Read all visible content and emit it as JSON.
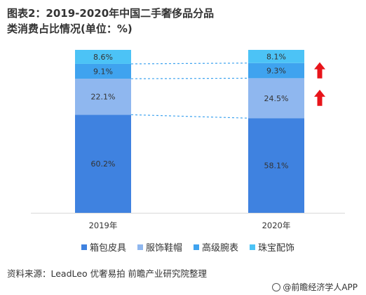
{
  "chart_data": {
    "type": "bar",
    "stacked": true,
    "title": "图表2：2019-2020年中国二手奢侈品分品类消费占比情况(单位：%)",
    "categories": [
      "2019年",
      "2020年"
    ],
    "ylim": [
      0,
      100
    ],
    "series": [
      {
        "name": "箱包皮具",
        "color": "#3f82e0",
        "values": [
          60.2,
          58.1
        ],
        "labels": [
          "60.2%",
          "58.1%"
        ]
      },
      {
        "name": "服饰鞋帽",
        "color": "#8fb7ef",
        "values": [
          22.1,
          24.5
        ],
        "labels": [
          "22.1%",
          "24.5%"
        ]
      },
      {
        "name": "高级腕表",
        "color": "#3fa3ef",
        "values": [
          9.1,
          9.3
        ],
        "labels": [
          "9.1%",
          "9.3%"
        ]
      },
      {
        "name": "珠宝配饰",
        "color": "#4cc3f6",
        "values": [
          8.6,
          8.1
        ],
        "labels": [
          "8.6%",
          "8.1%"
        ]
      }
    ],
    "annotations": [
      "up-arrow-wristwatch",
      "up-arrow-apparel"
    ],
    "legend_position": "bottom",
    "grid": false
  },
  "arrow_color": "#e8141a",
  "source_text": "资料来源：LeadLeo 优奢易拍 前瞻产业研究院整理",
  "brand_text": "@前瞻经济学人APP"
}
